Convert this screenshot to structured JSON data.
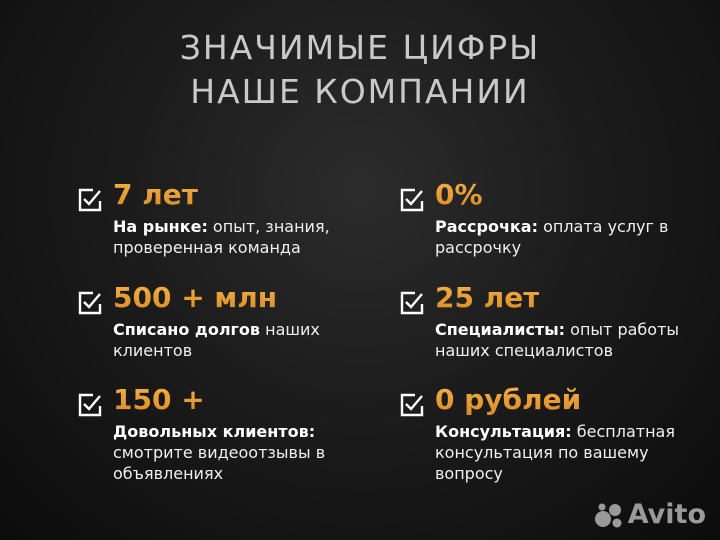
{
  "title": {
    "line1": "ЗНАЧИМЫЕ ЦИФРЫ",
    "line2": "НАШЕ КОМПАНИИ"
  },
  "accent_color": "#f0a43a",
  "items": [
    {
      "value": "7 лет",
      "label": "На рынке:",
      "text": " опыт, знания, проверенная команда",
      "icon": "checkbox-checked-icon"
    },
    {
      "value": "0%",
      "label": "Рассрочка:",
      "text": " оплата услуг в рассрочку",
      "icon": "checkbox-checked-icon"
    },
    {
      "value": "500 + млн",
      "label": "Списано долгов",
      "text": " наших клиентов",
      "icon": "checkbox-checked-icon"
    },
    {
      "value": "25 лет",
      "label": "Специалисты:",
      "text": " опыт работы наших специалистов",
      "icon": "checkbox-checked-icon"
    },
    {
      "value": "150 +",
      "label": "Довольных клиентов:",
      "text": " смотрите видеоотзывы в объявлениях",
      "icon": "checkbox-checked-icon"
    },
    {
      "value": "0 рублей",
      "label": "Консультация:",
      "text": " бесплатная консультация по вашему вопросу",
      "icon": "checkbox-checked-icon"
    }
  ],
  "logo": {
    "text": "Avito"
  }
}
